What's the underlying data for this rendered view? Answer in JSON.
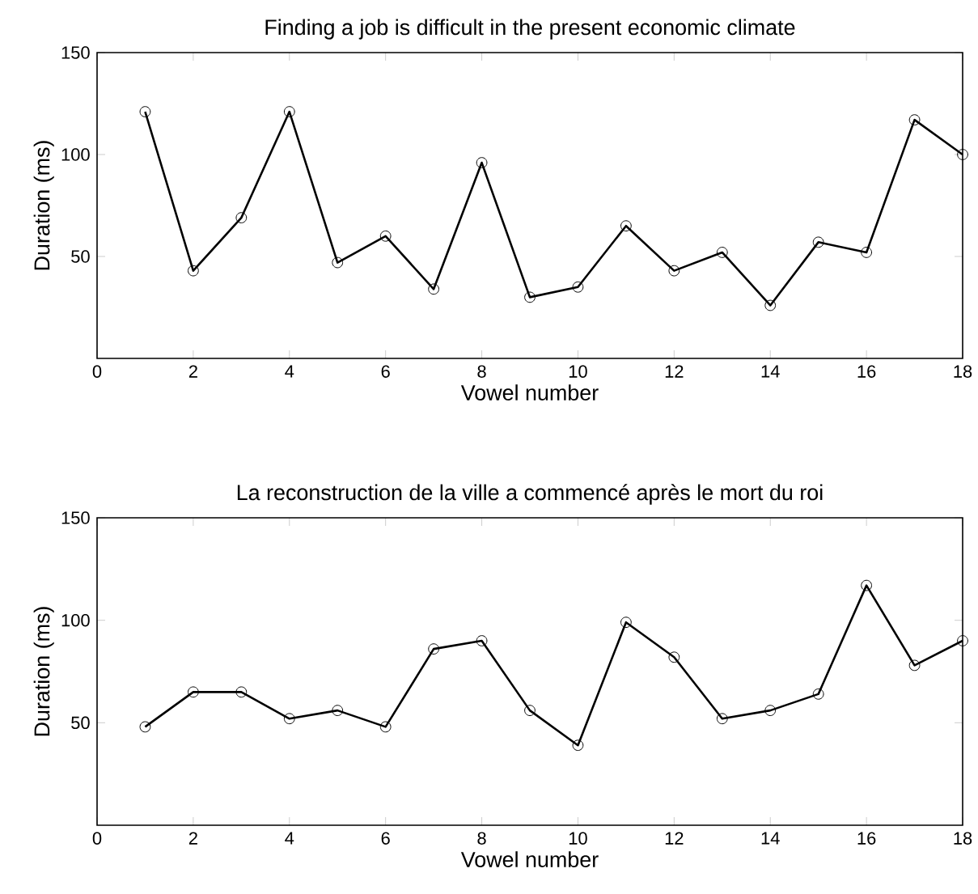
{
  "chart_data": [
    {
      "type": "line",
      "title": "Finding a job is difficult in the present economic climate",
      "xlabel": "Vowel number",
      "ylabel": "Duration (ms)",
      "x": [
        1,
        2,
        3,
        4,
        5,
        6,
        7,
        8,
        9,
        10,
        11,
        12,
        13,
        14,
        15,
        16,
        17,
        18
      ],
      "values": [
        121,
        43,
        69,
        121,
        47,
        60,
        34,
        96,
        30,
        35,
        65,
        43,
        52,
        26,
        57,
        52,
        117,
        100
      ],
      "color": "#000000",
      "marker": "circle",
      "xlim": [
        0,
        18
      ],
      "ylim": [
        0,
        150
      ],
      "xticks": [
        0,
        2,
        4,
        6,
        8,
        10,
        12,
        14,
        16,
        18
      ],
      "yticks": [
        50,
        100,
        150
      ]
    },
    {
      "type": "line",
      "title": "La reconstruction de la ville a commencé après le mort du roi",
      "xlabel": "Vowel number",
      "ylabel": "Duration (ms)",
      "x": [
        1,
        2,
        3,
        4,
        5,
        6,
        7,
        8,
        9,
        10,
        11,
        12,
        13,
        14,
        15,
        16,
        17,
        18
      ],
      "values": [
        48,
        65,
        65,
        52,
        56,
        48,
        86,
        90,
        56,
        39,
        99,
        82,
        52,
        56,
        64,
        117,
        78,
        90
      ],
      "color": "#000000",
      "marker": "circle",
      "xlim": [
        0,
        18
      ],
      "ylim": [
        0,
        150
      ],
      "xticks": [
        0,
        2,
        4,
        6,
        8,
        10,
        12,
        14,
        16,
        18
      ],
      "yticks": [
        50,
        100,
        150
      ]
    }
  ]
}
